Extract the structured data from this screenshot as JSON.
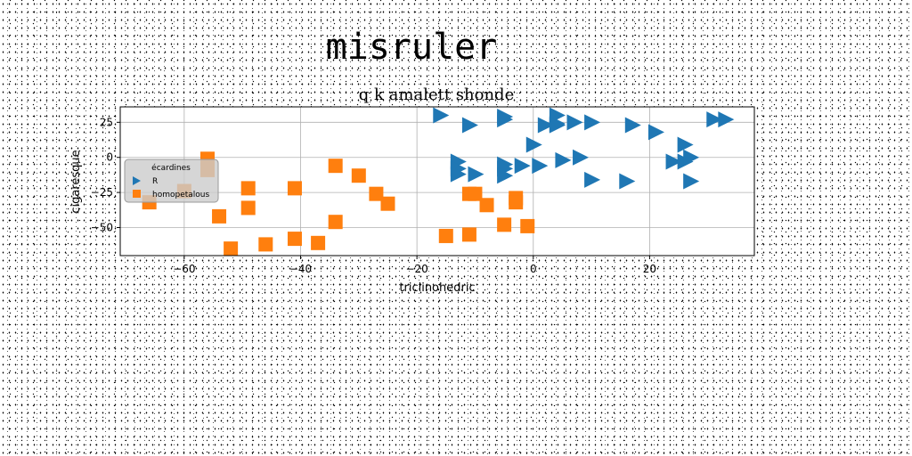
{
  "chart_data": {
    "type": "scatter",
    "suptitle": "misruler",
    "title": "q k amalett shonde",
    "xlabel": "triclinohedric",
    "ylabel": "cigaresque",
    "xlim": [
      -71,
      38
    ],
    "ylim": [
      -70,
      36
    ],
    "xticks": [
      -60,
      -40,
      -20,
      0,
      20
    ],
    "yticks": [
      -50,
      -25,
      0,
      25
    ],
    "grid": true,
    "legend": {
      "placement": "center-left",
      "title": "écardines",
      "entries": [
        "R",
        "homopetalous"
      ]
    },
    "colors": {
      "R": "#1f77b4",
      "homopetalous": "#ff7f0e"
    },
    "series": [
      {
        "name": "R",
        "marker": "triangle-right",
        "x": [
          -16,
          -11,
          -5,
          -5,
          2,
          4,
          4,
          4,
          7,
          10,
          17,
          21,
          31,
          33,
          -13,
          -13,
          -13,
          -10,
          -5,
          -5,
          -5,
          -2,
          1,
          0,
          4,
          5,
          8,
          10,
          16,
          24,
          26,
          26,
          27,
          27
        ],
        "y": [
          30,
          23,
          29,
          27,
          23,
          23,
          24,
          30,
          25,
          25,
          23,
          18,
          27,
          27,
          -3,
          -8,
          -12,
          -12,
          -5,
          -8,
          -13,
          -6,
          -6,
          9,
          23,
          -2,
          0,
          -16,
          -17,
          -3,
          -3,
          9,
          0,
          -17
        ]
      },
      {
        "name": "homopetalous",
        "marker": "square",
        "x": [
          -56,
          -56,
          -66,
          -60,
          -54,
          -52,
          -49,
          -49,
          -46,
          -41,
          -41,
          -37,
          -34,
          -34,
          -30,
          -27,
          -25,
          -15,
          -11,
          -11,
          -10,
          -8,
          -5,
          -3,
          -3,
          -1
        ],
        "y": [
          -1,
          -9,
          -32,
          -24,
          -42,
          -65,
          -22,
          -36,
          -62,
          -22,
          -58,
          -61,
          -6,
          -46,
          -13,
          -26,
          -33,
          -56,
          -55,
          -26,
          -26,
          -34,
          -48,
          -29,
          -32,
          -49
        ]
      }
    ]
  }
}
